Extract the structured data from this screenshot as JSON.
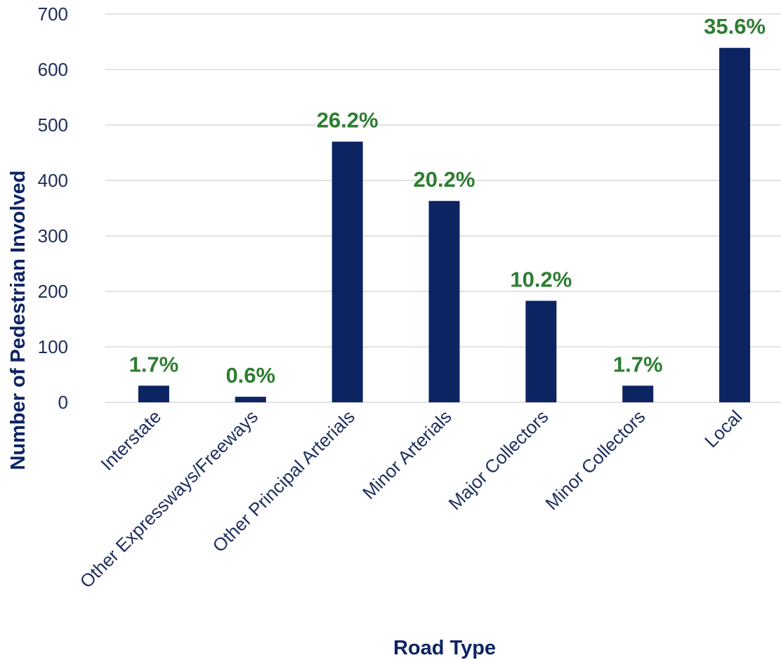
{
  "chart_data": {
    "type": "bar",
    "categories": [
      "Interstate",
      "Other Expressways/Freeways",
      "Other Principal Arterials",
      "Minor Arterials",
      "Major Collectors",
      "Minor Collectors",
      "Local"
    ],
    "values": [
      30,
      10,
      470,
      363,
      183,
      30,
      639
    ],
    "data_labels": [
      "1.7%",
      "0.6%",
      "26.2%",
      "20.2%",
      "10.2%",
      "1.7%",
      "35.6%"
    ],
    "xlabel": "Road Type",
    "ylabel": "Number of Pedestrian Involved",
    "ylim": [
      0,
      700
    ],
    "yticks": [
      0,
      100,
      200,
      300,
      400,
      500,
      600,
      700
    ],
    "grid": true,
    "legend": "none",
    "colors": {
      "bar": "#0d2463",
      "data_label": "#2e7d32",
      "axis_text": "#1f2d5c",
      "grid": "#d9d9d9"
    }
  }
}
